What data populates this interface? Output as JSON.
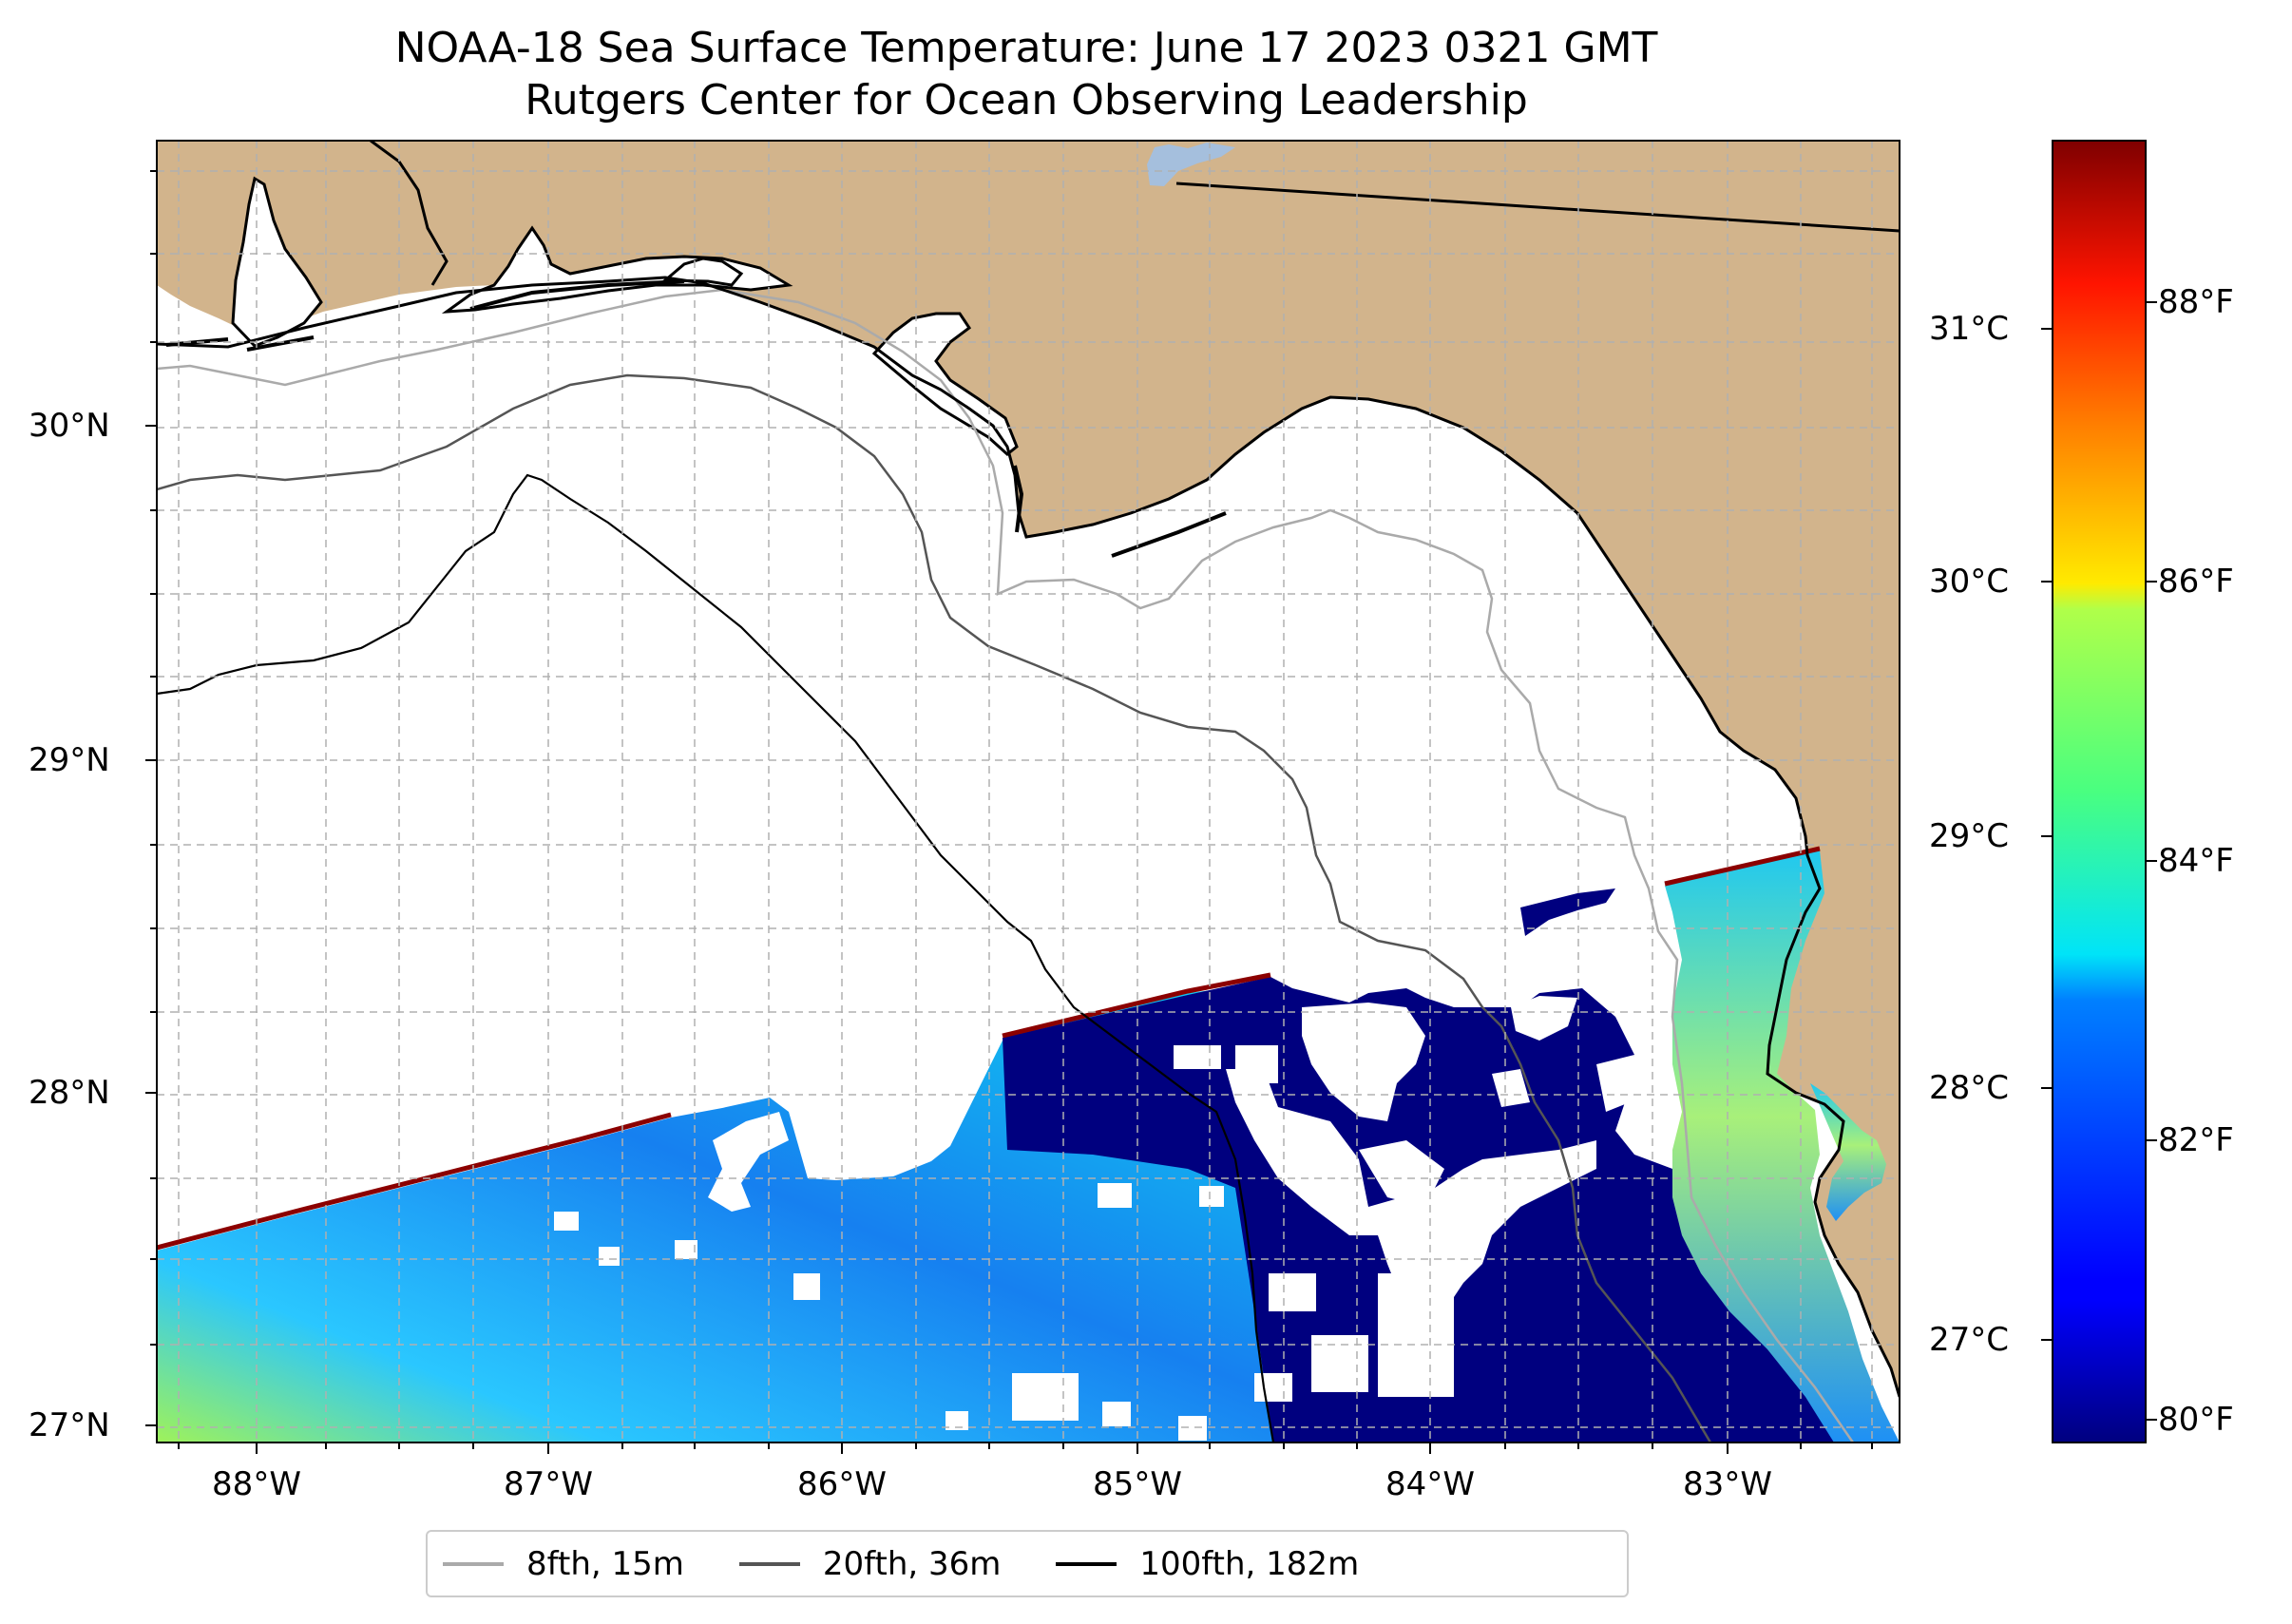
{
  "title": {
    "line1": "NOAA-18 Sea Surface Temperature: June 17 2023 0321 GMT",
    "line2": "Rutgers Center for Ocean Observing Leadership"
  },
  "map": {
    "latitude_ticks": [
      "30°N",
      "29°N",
      "28°N",
      "27°N"
    ],
    "longitude_ticks": [
      "88°W",
      "87°W",
      "86°W",
      "85°W",
      "84°W",
      "83°W"
    ],
    "extent": {
      "lon_min": -88.33,
      "lon_max": -82.42,
      "lat_min": 26.94,
      "lat_max": 30.85
    },
    "colors": {
      "land": "#d2b48c",
      "ocean_nodata": "#ffffff",
      "lake": "#a5bfdd",
      "coast": "#000000",
      "grid": "#b0b0b0"
    }
  },
  "colorbar": {
    "celsius_labels": [
      "31°C",
      "30°C",
      "29°C",
      "28°C",
      "27°C"
    ],
    "fahrenheit_labels": [
      "88°F",
      "86°F",
      "84°F",
      "82°F",
      "80°F"
    ],
    "celsius_values": [
      31,
      30,
      29,
      28,
      27
    ],
    "fahrenheit_values": [
      88,
      86,
      84,
      82,
      80
    ],
    "range_f": [
      79.7,
      89.6
    ],
    "colormap": "jet"
  },
  "legend": {
    "items": [
      {
        "label": "8fth, 15m",
        "color": "#aaaaaa"
      },
      {
        "label": "20fth, 36m",
        "color": "#555555"
      },
      {
        "label": "100fth, 182m",
        "color": "#000000"
      }
    ]
  }
}
